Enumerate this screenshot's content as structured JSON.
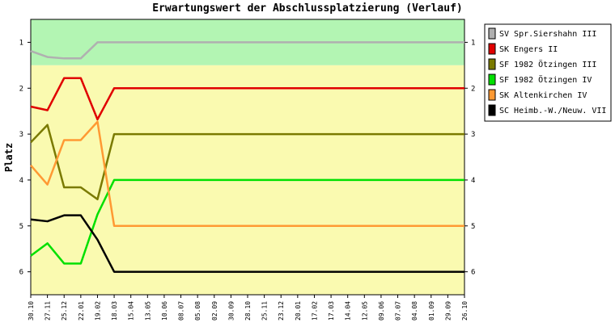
{
  "chart_data": {
    "type": "line",
    "title": "Erwartungswert der Abschlussplatzierung (Verlauf)",
    "y_label": "Platz",
    "categories": [
      "30.10",
      "27.11",
      "25.12",
      "22.01",
      "19.02",
      "18.03",
      "15.04",
      "13.05",
      "10.06",
      "08.07",
      "05.08",
      "02.09",
      "30.09",
      "28.10",
      "25.11",
      "23.12",
      "20.01",
      "17.02",
      "17.03",
      "14.04",
      "12.05",
      "09.06",
      "07.07",
      "04.08",
      "01.09",
      "29.09",
      "26.10"
    ],
    "ylim": [
      0.5,
      6.5
    ],
    "y_inverted": true,
    "yticks": [
      1,
      2,
      3,
      4,
      5,
      6
    ],
    "bands": [
      {
        "from": 0.5,
        "to": 1.5,
        "color": "#b3f5b3"
      },
      {
        "from": 1.5,
        "to": 6.5,
        "color": "#fafab0"
      }
    ],
    "legend": "right",
    "series": [
      {
        "name": "SV Spr.Siershahn III",
        "color": "#b0b0b0",
        "values": [
          1.19,
          1.32,
          1.35,
          1.35,
          1,
          1,
          1,
          1,
          1,
          1,
          1,
          1,
          1,
          1,
          1,
          1,
          1,
          1,
          1,
          1,
          1,
          1,
          1,
          1,
          1,
          1,
          1
        ]
      },
      {
        "name": "SK Engers II",
        "color": "#e00000",
        "values": [
          2.4,
          2.48,
          1.78,
          1.78,
          2.68,
          2,
          2,
          2,
          2,
          2,
          2,
          2,
          2,
          2,
          2,
          2,
          2,
          2,
          2,
          2,
          2,
          2,
          2,
          2,
          2,
          2,
          2
        ]
      },
      {
        "name": "SF 1982 Ötzingen III",
        "color": "#7a7a00",
        "values": [
          3.18,
          2.8,
          4.16,
          4.16,
          4.42,
          3,
          3,
          3,
          3,
          3,
          3,
          3,
          3,
          3,
          3,
          3,
          3,
          3,
          3,
          3,
          3,
          3,
          3,
          3,
          3,
          3,
          3
        ]
      },
      {
        "name": "SF 1982 Ötzingen IV",
        "color": "#00e000",
        "values": [
          5.65,
          5.38,
          5.82,
          5.82,
          4.75,
          4,
          4,
          4,
          4,
          4,
          4,
          4,
          4,
          4,
          4,
          4,
          4,
          4,
          4,
          4,
          4,
          4,
          4,
          4,
          4,
          4,
          4
        ]
      },
      {
        "name": "SK Altenkirchen IV",
        "color": "#ff9933",
        "values": [
          3.68,
          4.1,
          3.13,
          3.13,
          2.73,
          5,
          5,
          5,
          5,
          5,
          5,
          5,
          5,
          5,
          5,
          5,
          5,
          5,
          5,
          5,
          5,
          5,
          5,
          5,
          5,
          5,
          5
        ]
      },
      {
        "name": "SC Heimb.-W./Neuw. VII",
        "color": "#000000",
        "values": [
          4.86,
          4.9,
          4.77,
          4.77,
          5.3,
          6,
          6,
          6,
          6,
          6,
          6,
          6,
          6,
          6,
          6,
          6,
          6,
          6,
          6,
          6,
          6,
          6,
          6,
          6,
          6,
          6,
          6
        ]
      }
    ]
  }
}
